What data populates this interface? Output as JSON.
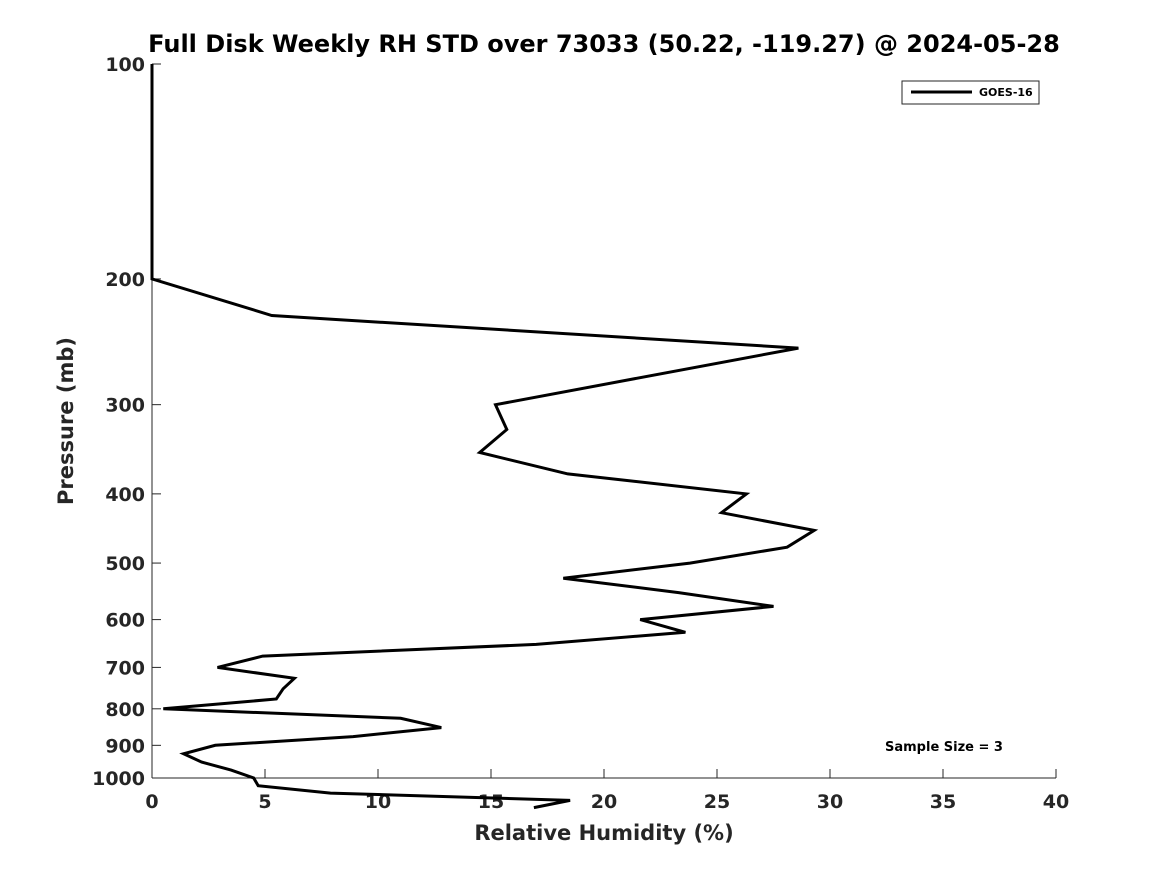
{
  "chart_data": {
    "type": "line",
    "title": "Full Disk Weekly RH STD over 73033 (50.22, -119.27) @ 2024-05-28",
    "xlabel": "Relative Humidity (%)",
    "ylabel": "Pressure (mb)",
    "xlim": [
      0,
      40
    ],
    "ylim": [
      100,
      1000
    ],
    "yscale": "log",
    "y_reversed": true,
    "xticks": [
      "0",
      "5",
      "10",
      "15",
      "20",
      "25",
      "30",
      "35",
      "40"
    ],
    "yticks": [
      "100",
      "200",
      "300",
      "400",
      "500",
      "600",
      "700",
      "800",
      "900",
      "1000"
    ],
    "grid": false,
    "legend": {
      "position": "top-right",
      "entries": [
        "GOES-16"
      ]
    },
    "annotation": "Sample Size = 3",
    "series": [
      {
        "name": "GOES-16",
        "color": "#000000",
        "x": [
          0,
          0,
          0,
          0,
          0,
          5.3,
          28.6,
          15.2,
          15.7,
          14.5,
          18.4,
          26.3,
          25.2,
          29.3,
          28.1,
          23.8,
          18.2,
          23.3,
          27.5,
          21.6,
          23.6,
          17.0,
          4.9,
          2.9,
          6.3,
          5.8,
          5.5,
          0.5,
          11.0,
          12.8,
          8.9,
          2.8,
          1.4,
          2.2,
          3.5,
          4.5,
          4.7,
          7.9,
          18.5,
          16.9
        ],
        "y": [
          100,
          125,
          150,
          175,
          200,
          225,
          250,
          300,
          325,
          350,
          375,
          400,
          425,
          450,
          475,
          500,
          525,
          550,
          575,
          600,
          625,
          650,
          675,
          700,
          725,
          750,
          775,
          800,
          825,
          850,
          875,
          900,
          925,
          950,
          975,
          1000,
          1025,
          1050,
          1075,
          1100
        ]
      }
    ]
  }
}
